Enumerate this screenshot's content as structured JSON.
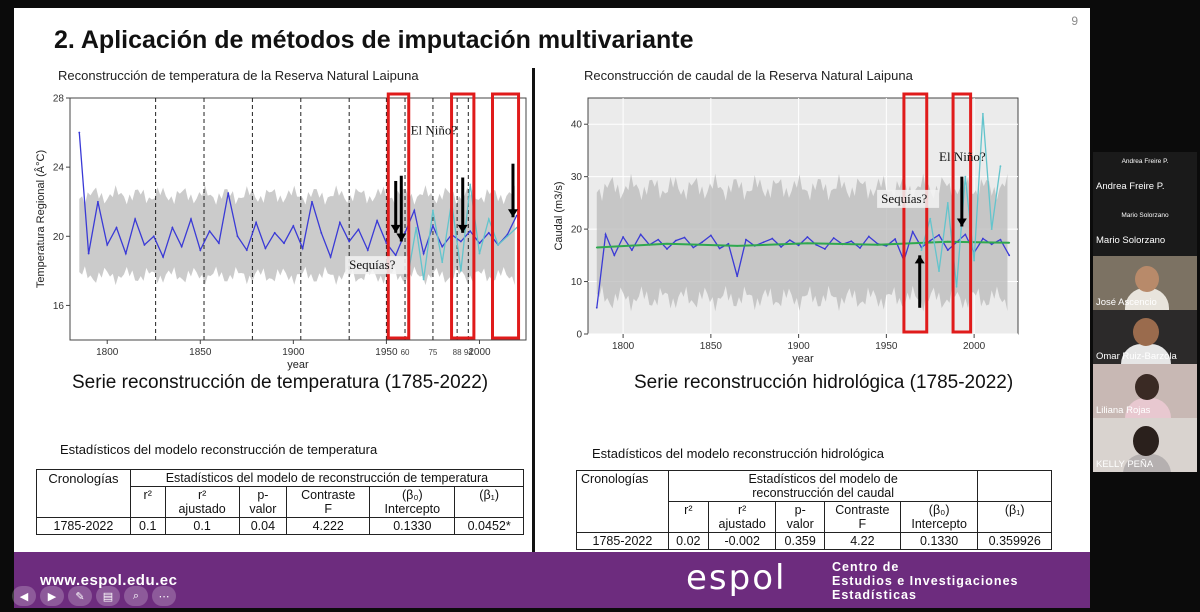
{
  "slide": {
    "page_number": "9",
    "title": "2. Aplicación de métodos de imputación multivariante",
    "footer_url": "www.espol.edu.ec",
    "logo_text": "espol",
    "center_line1": "Centro de",
    "center_line2": "Estudios e Investigaciones",
    "center_line3": "Estadísticas"
  },
  "left_chart": {
    "title": "Reconstrucción de temperatura de la Reserva Natural Laipuna",
    "ylabel": "Temperatura Regional (Â°C)",
    "xlabel": "year",
    "annotation_nino": "El Niño?",
    "annotation_sequias": "Sequías?",
    "extra_ticks": [
      "60",
      "75",
      "88",
      "94"
    ],
    "caption": "Serie reconstrucción de temperatura (1785-2022)"
  },
  "right_chart": {
    "title": "Reconstrucción de caudal de la Reserva Natural Laipuna",
    "ylabel": "Caudal (m3/s)",
    "xlabel": "year",
    "annotation_nino": "El Niño?",
    "annotation_sequias": "Sequías?",
    "caption": "Serie reconstrucción hidrológica (1785-2022)"
  },
  "chart_data": [
    {
      "type": "line",
      "title": "Reconstrucción de temperatura de la Reserva Natural Laipuna",
      "xlabel": "year",
      "ylabel": "Temperatura Regional (Â°C)",
      "xlim": [
        1780,
        2025
      ],
      "ylim": [
        14,
        28
      ],
      "xticks": [
        1800,
        1850,
        1900,
        1950,
        2000
      ],
      "yticks": [
        16,
        20,
        24,
        28
      ],
      "dashed_years": [
        1826,
        1852,
        1878,
        1904,
        1930,
        1950,
        1960,
        1975,
        1988,
        1994
      ],
      "highlight_ranges": [
        [
          1951,
          1962
        ],
        [
          1985,
          1997
        ],
        [
          2007,
          2021
        ]
      ],
      "series": [
        {
          "name": "reconstruction",
          "color": "#3a3ad6",
          "x": [
            1785,
            1790,
            1795,
            1800,
            1805,
            1810,
            1815,
            1820,
            1825,
            1830,
            1835,
            1840,
            1845,
            1850,
            1855,
            1860,
            1865,
            1870,
            1875,
            1880,
            1885,
            1890,
            1895,
            1900,
            1905,
            1910,
            1915,
            1920,
            1925,
            1930,
            1935,
            1940,
            1945,
            1950,
            1955,
            1960,
            1965,
            1970,
            1975,
            1980,
            1985,
            1990,
            1995,
            2000,
            2005,
            2010,
            2015,
            2020
          ],
          "values": [
            26,
            19,
            22,
            19.5,
            20.5,
            19,
            21,
            19.5,
            20,
            18.8,
            20.5,
            19.4,
            21,
            19.2,
            20.3,
            19.6,
            22.5,
            20,
            19.2,
            20.8,
            19.3,
            20.2,
            19.6,
            20.6,
            19.3,
            22,
            20.2,
            18.8,
            20.8,
            19.7,
            20.4,
            19.2,
            20.9,
            19.6,
            18.9,
            20.2,
            21.5,
            19,
            20.6,
            19.4,
            20.1,
            19.7,
            20.3,
            19.6,
            20.2,
            19.5,
            20.1,
            21.2
          ]
        },
        {
          "name": "observed",
          "color": "#63c4cc",
          "x": [
            1962,
            1966,
            1970,
            1975,
            1980,
            1985,
            1990,
            1995,
            2000,
            2005,
            2010,
            2015,
            2020
          ],
          "values": [
            18,
            20.5,
            17.5,
            21.5,
            18.5,
            22,
            18,
            23,
            19,
            21,
            19.5,
            20,
            20.5
          ]
        }
      ]
    },
    {
      "type": "line",
      "title": "Reconstrucción de caudal de la Reserva Natural Laipuna",
      "xlabel": "year",
      "ylabel": "Caudal (m3/s)",
      "xlim": [
        1780,
        2025
      ],
      "ylim": [
        0,
        45
      ],
      "xticks": [
        1800,
        1850,
        1900,
        1950,
        2000
      ],
      "yticks": [
        0,
        10,
        20,
        30,
        40
      ],
      "highlight_ranges": [
        [
          1960,
          1973
        ],
        [
          1988,
          1998
        ]
      ],
      "series": [
        {
          "name": "reconstruction",
          "color": "#3a3ad6",
          "x": [
            1785,
            1790,
            1795,
            1800,
            1805,
            1810,
            1815,
            1820,
            1825,
            1830,
            1835,
            1840,
            1845,
            1850,
            1855,
            1860,
            1865,
            1870,
            1875,
            1880,
            1885,
            1890,
            1895,
            1900,
            1905,
            1910,
            1915,
            1920,
            1925,
            1930,
            1935,
            1940,
            1945,
            1950,
            1955,
            1960,
            1965,
            1970,
            1975,
            1980,
            1985,
            1990,
            1995,
            2000,
            2005,
            2010,
            2015,
            2020
          ],
          "values": [
            5,
            19,
            15,
            18.5,
            16,
            19,
            17,
            18,
            16.2,
            17.8,
            18.4,
            16.5,
            17.5,
            18.8,
            16.3,
            17.2,
            11,
            18,
            16.8,
            17.5,
            18.2,
            16.6,
            17.9,
            16.9,
            18.5,
            17,
            16.2,
            18.3,
            17.1,
            17.7,
            16.4,
            18.6,
            17.2,
            16.8,
            18.1,
            14,
            19.5,
            16.5,
            17.8,
            18.9,
            16,
            17.5,
            19,
            15.5,
            18.2,
            17.1,
            18,
            15
          ]
        },
        {
          "name": "smoothed",
          "color": "#2fa84f",
          "x": [
            1785,
            1825,
            1865,
            1905,
            1945,
            1985,
            2020
          ],
          "values": [
            16.5,
            17.2,
            16.8,
            17.3,
            17.0,
            17.6,
            17.4
          ]
        },
        {
          "name": "observed",
          "color": "#63c4cc",
          "x": [
            1970,
            1975,
            1980,
            1985,
            1990,
            1995,
            2000,
            2005,
            2010,
            2015
          ],
          "values": [
            16,
            22,
            12,
            25,
            9,
            30,
            14,
            42,
            20,
            32
          ]
        }
      ]
    }
  ],
  "temp_stats": {
    "title": "Estadísticos del modelo reconstrucción de temperatura",
    "col_cronologias": "Cronologías",
    "group_header": "Estadísticos del modelo de reconstrucción de temperatura",
    "h_r2": "r²",
    "h_r2adj_1": "r²",
    "h_r2adj_2": "ajustado",
    "h_pval_1": "p-",
    "h_pval_2": "valor",
    "h_contraste_1": "Contraste",
    "h_contraste_2": "F",
    "h_b0_1": "(β₀)",
    "h_b0_2": "Intercepto",
    "h_b1": "(β₁)",
    "row": {
      "period": "1785-2022",
      "r2": "0.1",
      "r2adj": "0.1",
      "pval": "0.04",
      "f": "4.222",
      "b0": "0.1330",
      "b1": "0.0452*"
    }
  },
  "hydro_stats": {
    "title": "Estadísticos del modelo reconstrucción hidrológica",
    "col_cronologias": "Cronologías",
    "group_header_1": "Estadísticos del modelo de",
    "group_header_2": "reconstrucción del caudal",
    "h_r2": "r²",
    "h_r2adj_1": "r²",
    "h_r2adj_2": "ajustado",
    "h_pval_1": "p-",
    "h_pval_2": "valor",
    "h_contraste_1": "Contraste",
    "h_contraste_2": "F",
    "h_b0_1": "(β₀)",
    "h_b0_2": "Intercepto",
    "h_b1": "(β₁)",
    "row": {
      "period": "1785-2022",
      "r2": "0.02",
      "r2adj": "-0.002",
      "pval": "0.359",
      "f": "4.22",
      "b0": "0.1330",
      "b1": "0.359926"
    }
  },
  "participants": [
    {
      "name": "Andrea Freire P.",
      "tag": "Andrea Freire P."
    },
    {
      "name": "Mario Solorzano",
      "tag": "Mario Solorzano"
    },
    {
      "name": "José Ascencio"
    },
    {
      "name": "Omar Ruiz-Barzola"
    },
    {
      "name": "Liliana Rojas"
    },
    {
      "name": "KELLY PEÑA"
    }
  ],
  "controls": [
    {
      "name": "prev-icon",
      "glyph": "◀"
    },
    {
      "name": "next-icon",
      "glyph": "▶"
    },
    {
      "name": "pen-icon",
      "glyph": "✎"
    },
    {
      "name": "slides-icon",
      "glyph": "▤"
    },
    {
      "name": "zoom-icon",
      "glyph": "⌕"
    },
    {
      "name": "more-icon",
      "glyph": "⋯"
    }
  ]
}
